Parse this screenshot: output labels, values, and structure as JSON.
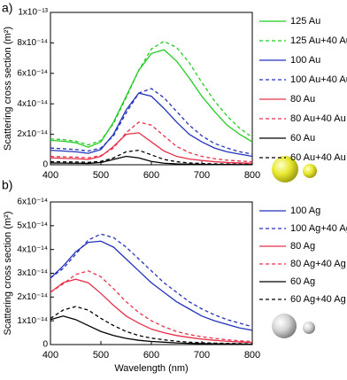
{
  "chart_data": [
    {
      "type": "line",
      "panel_label": "a)",
      "y_label": "Scattering cross section (m²)",
      "x": [
        400,
        425,
        450,
        475,
        500,
        525,
        550,
        575,
        600,
        625,
        650,
        675,
        700,
        725,
        750,
        775,
        800
      ],
      "xlim": [
        400,
        800
      ],
      "xticks": [
        400,
        500,
        600,
        700,
        800
      ],
      "ylim": [
        0,
        1e-13
      ],
      "yticks": [
        0,
        {
          "value": 2e-14,
          "label": "2x10⁻¹⁴"
        },
        {
          "value": 4e-14,
          "label": "4x10⁻¹⁴"
        },
        {
          "value": 6e-14,
          "label": "6x10⁻¹⁴"
        },
        {
          "value": 8e-14,
          "label": "8x10⁻¹⁴"
        },
        {
          "value": 1e-13,
          "label": "1x10⁻¹³"
        }
      ],
      "series": [
        {
          "name": "125 Au",
          "color": "#22cc22",
          "dash": false,
          "values": [
            1.6e-14,
            1.55e-14,
            1.45e-14,
            1.15e-14,
            1.5e-14,
            2.8e-14,
            4.5e-14,
            6.2e-14,
            7.3e-14,
            7.55e-14,
            6.8e-14,
            5.7e-14,
            4.5e-14,
            3.5e-14,
            2.6e-14,
            2e-14,
            1.5e-14
          ]
        },
        {
          "name": "125 Au+40 Au",
          "color": "#22cc22",
          "dash": true,
          "values": [
            1.7e-14,
            1.65e-14,
            1.55e-14,
            1.3e-14,
            1.6e-14,
            2.7e-14,
            4.4e-14,
            6.2e-14,
            7.6e-14,
            8.1e-14,
            7.7e-14,
            6.7e-14,
            5.4e-14,
            4.2e-14,
            3.2e-14,
            2.4e-14,
            1.8e-14
          ]
        },
        {
          "name": "100 Au",
          "color": "#2233bb",
          "dash": false,
          "values": [
            9.5e-15,
            9e-15,
            8.5e-15,
            7.5e-15,
            1e-14,
            2e-14,
            3.6e-14,
            4.7e-14,
            4.5e-14,
            3.7e-14,
            2.8e-14,
            2e-14,
            1.5e-14,
            1.1e-14,
            8.5e-15,
            7e-15,
            5.5e-15
          ]
        },
        {
          "name": "100 Au+40 Au",
          "color": "#2233bb",
          "dash": true,
          "values": [
            1.1e-14,
            1.05e-14,
            1e-14,
            9e-15,
            1.1e-14,
            1.9e-14,
            3.4e-14,
            4.7e-14,
            5e-14,
            4.4e-14,
            3.5e-14,
            2.6e-14,
            1.9e-14,
            1.4e-14,
            1.1e-14,
            8.5e-15,
            7e-15
          ]
        },
        {
          "name": "80 Au",
          "color": "#e8304a",
          "dash": false,
          "values": [
            4.5e-15,
            4.2e-15,
            4e-15,
            3.5e-15,
            5.5e-15,
            1.2e-14,
            2e-14,
            2.1e-14,
            1.5e-14,
            9e-15,
            5.5e-15,
            3.8e-15,
            2.8e-15,
            2e-15,
            1.5e-15,
            1.2e-15,
            1e-15
          ]
        },
        {
          "name": "80 Au+40 Au",
          "color": "#e8304a",
          "dash": true,
          "values": [
            5.5e-15,
            5.2e-15,
            5e-15,
            4.5e-15,
            6e-15,
            1.1e-14,
            2.1e-14,
            2.8e-14,
            2.6e-14,
            1.9e-14,
            1.2e-14,
            8e-15,
            5.5e-15,
            4e-15,
            3e-15,
            2.4e-15,
            2e-15
          ]
        },
        {
          "name": "60 Au",
          "color": "#000000",
          "dash": false,
          "values": [
            1.2e-15,
            1.1e-15,
            1e-15,
            9e-16,
            1.5e-15,
            3.5e-15,
            5.5e-15,
            4.5e-15,
            2.2e-15,
            1e-15,
            6e-16,
            4e-16,
            3e-16,
            2e-16,
            2e-16,
            1e-16,
            1e-16
          ]
        },
        {
          "name": "60 Au+40 Au",
          "color": "#000000",
          "dash": true,
          "values": [
            2e-15,
            1.9e-15,
            1.8e-15,
            1.6e-15,
            2.2e-15,
            4.5e-15,
            8.5e-15,
            9.5e-15,
            6.5e-15,
            3.5e-15,
            2e-15,
            1.2e-15,
            8e-16,
            6e-16,
            5e-16,
            4e-16,
            3e-16
          ]
        }
      ]
    },
    {
      "type": "line",
      "panel_label": "b)",
      "y_label": "Scattering cross section (m²)",
      "x_label": "Wavelength (nm)",
      "x": [
        400,
        425,
        450,
        475,
        500,
        525,
        550,
        575,
        600,
        625,
        650,
        675,
        700,
        725,
        750,
        775,
        800
      ],
      "xlim": [
        400,
        800
      ],
      "xticks": [
        400,
        500,
        600,
        700,
        800
      ],
      "ylim": [
        0,
        6e-14
      ],
      "yticks": [
        0,
        {
          "value": 1e-14,
          "label": "1x10⁻¹⁴"
        },
        {
          "value": 2e-14,
          "label": "2x10⁻¹⁴"
        },
        {
          "value": 3e-14,
          "label": "3x10⁻¹⁴"
        },
        {
          "value": 4e-14,
          "label": "4x10⁻¹⁴"
        },
        {
          "value": 5e-14,
          "label": "5x10⁻¹⁴"
        },
        {
          "value": 6e-14,
          "label": "6x10⁻¹⁴"
        }
      ],
      "series": [
        {
          "name": "100 Ag",
          "color": "#2233bb",
          "dash": false,
          "values": [
            2.8e-14,
            3.3e-14,
            3.9e-14,
            4.3e-14,
            4.35e-14,
            4.1e-14,
            3.6e-14,
            3.1e-14,
            2.6e-14,
            2.2e-14,
            1.8e-14,
            1.5e-14,
            1.2e-14,
            1e-14,
            8.5e-15,
            7e-15,
            6e-15
          ]
        },
        {
          "name": "100 Ag+40 Ag",
          "color": "#2233bb",
          "dash": true,
          "values": [
            2.8e-14,
            3.2e-14,
            3.8e-14,
            4.4e-14,
            4.65e-14,
            4.5e-14,
            4.1e-14,
            3.6e-14,
            3.1e-14,
            2.6e-14,
            2.2e-14,
            1.8e-14,
            1.5e-14,
            1.25e-14,
            1.05e-14,
            9e-15,
            7.5e-15
          ]
        },
        {
          "name": "80 Ag",
          "color": "#e8304a",
          "dash": false,
          "values": [
            2.2e-14,
            2.6e-14,
            2.75e-14,
            2.6e-14,
            2.15e-14,
            1.65e-14,
            1.2e-14,
            9e-15,
            6.5e-15,
            5e-15,
            3.8e-15,
            3e-15,
            2.3e-15,
            1.8e-15,
            1.4e-15,
            1.1e-15,
            9e-16
          ]
        },
        {
          "name": "80 Ag+40 Ag",
          "color": "#e8304a",
          "dash": true,
          "values": [
            2.2e-14,
            2.55e-14,
            2.95e-14,
            3.1e-14,
            2.85e-14,
            2.35e-14,
            1.8e-14,
            1.35e-14,
            1e-14,
            7.5e-15,
            5.5e-15,
            4.2e-15,
            3.3e-15,
            2.6e-15,
            2e-15,
            1.6e-15,
            1.3e-15
          ]
        },
        {
          "name": "60 Ag",
          "color": "#000000",
          "dash": false,
          "values": [
            1.05e-14,
            1.2e-14,
            1.05e-14,
            8e-15,
            5.5e-15,
            3.8e-15,
            2.6e-15,
            1.8e-15,
            1.3e-15,
            1e-15,
            7e-16,
            5e-16,
            4e-16,
            3e-16,
            2.5e-16,
            2e-16,
            1.5e-16
          ]
        },
        {
          "name": "60 Ag+40 Ag",
          "color": "#000000",
          "dash": true,
          "values": [
            1.1e-14,
            1.45e-14,
            1.6e-14,
            1.45e-14,
            1.1e-14,
            8e-15,
            5.5e-15,
            3.8e-15,
            2.7e-15,
            2e-15,
            1.4e-15,
            1e-15,
            8e-16,
            6e-16,
            5e-16,
            4e-16,
            3e-16
          ]
        }
      ]
    }
  ]
}
